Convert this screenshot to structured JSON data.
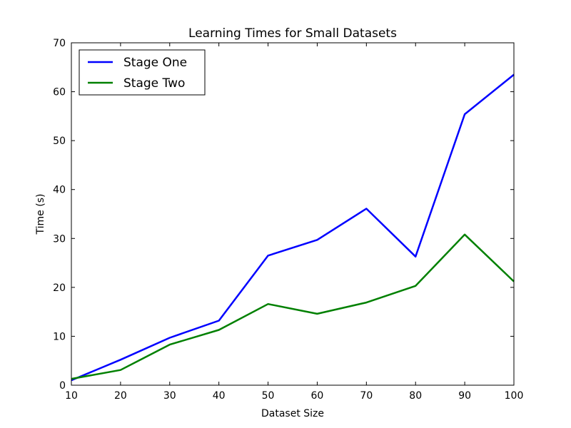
{
  "chart_data": {
    "type": "line",
    "title": "Learning Times for Small Datasets",
    "xlabel": "Dataset Size",
    "ylabel": "Time (s)",
    "xlim": [
      10,
      100
    ],
    "ylim": [
      0,
      70
    ],
    "xticks": [
      10,
      20,
      30,
      40,
      50,
      60,
      70,
      80,
      90,
      100
    ],
    "yticks": [
      0,
      10,
      20,
      30,
      40,
      50,
      60,
      70
    ],
    "grid": false,
    "legend_position": "top-left",
    "x": [
      10,
      20,
      30,
      40,
      50,
      60,
      70,
      80,
      90,
      100
    ],
    "series": [
      {
        "name": "Stage One",
        "color": "#0000ff",
        "values": [
          1.0,
          5.2,
          9.7,
          13.2,
          26.5,
          29.7,
          36.1,
          26.3,
          55.4,
          63.5
        ]
      },
      {
        "name": "Stage Two",
        "color": "#008000",
        "values": [
          1.3,
          3.1,
          8.3,
          11.3,
          16.6,
          14.6,
          16.9,
          20.3,
          30.8,
          21.2
        ]
      }
    ]
  }
}
